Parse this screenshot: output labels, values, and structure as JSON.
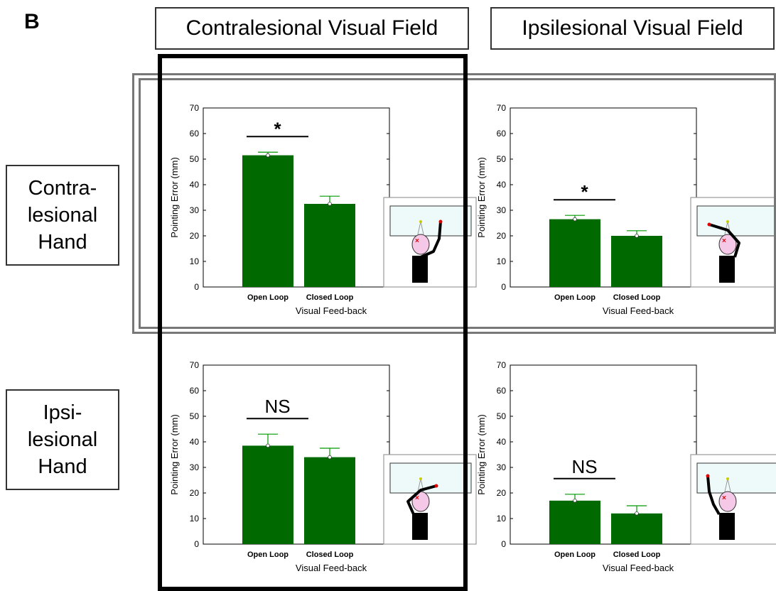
{
  "figure": {
    "panel_letter": "B",
    "column_titles": [
      "Contralesional Visual Field",
      "Ipsilesional Visual Field"
    ],
    "row_titles": [
      [
        "Contra-",
        "lesional",
        "Hand"
      ],
      [
        "Ipsi-",
        "lesional",
        "Hand"
      ]
    ]
  },
  "colors": {
    "bar": "#006a00",
    "error_bar": "#009a00",
    "frame_contralesional_field": "#000000",
    "frame_contralesional_hand": "#777777"
  },
  "chart_data": [
    {
      "type": "bar",
      "hand": "Contralesional Hand",
      "field": "Contralesional Visual Field",
      "categories": [
        "Open Loop",
        "Closed Loop"
      ],
      "values": [
        51.5,
        32.5
      ],
      "errors": [
        1.2,
        3.0
      ],
      "ylabel": "Pointing Error (mm)",
      "xlabel": "Visual Feed-back",
      "ylim": [
        0,
        70
      ],
      "yticks": [
        0,
        10,
        20,
        30,
        40,
        50,
        60,
        70
      ],
      "significance": "*",
      "inset": "left-arm-reach"
    },
    {
      "type": "bar",
      "hand": "Contralesional Hand",
      "field": "Ipsilesional Visual Field",
      "categories": [
        "Open Loop",
        "Closed Loop"
      ],
      "values": [
        26.5,
        20.0
      ],
      "errors": [
        1.5,
        2.0
      ],
      "ylabel": "Pointing Error (mm)",
      "xlabel": "Visual Feed-back",
      "ylim": [
        0,
        70
      ],
      "yticks": [
        0,
        10,
        20,
        30,
        40,
        50,
        60,
        70
      ],
      "significance": "*",
      "inset": "left-arm-cross"
    },
    {
      "type": "bar",
      "hand": "Ipsilesional Hand",
      "field": "Contralesional Visual Field",
      "categories": [
        "Open Loop",
        "Closed Loop"
      ],
      "values": [
        38.5,
        34.0
      ],
      "errors": [
        4.5,
        3.5
      ],
      "ylabel": "Pointing Error (mm)",
      "xlabel": "Visual Feed-back",
      "ylim": [
        0,
        70
      ],
      "yticks": [
        0,
        10,
        20,
        30,
        40,
        50,
        60,
        70
      ],
      "significance": "NS",
      "inset": "right-arm-cross"
    },
    {
      "type": "bar",
      "hand": "Ipsilesional Hand",
      "field": "Ipsilesional Visual Field",
      "categories": [
        "Open Loop",
        "Closed Loop"
      ],
      "values": [
        17.0,
        12.0
      ],
      "errors": [
        2.5,
        3.0
      ],
      "ylabel": "Pointing Error (mm)",
      "xlabel": "Visual Feed-back",
      "ylim": [
        0,
        70
      ],
      "yticks": [
        0,
        10,
        20,
        30,
        40,
        50,
        60,
        70
      ],
      "significance": "NS",
      "inset": "right-arm-reach"
    }
  ]
}
